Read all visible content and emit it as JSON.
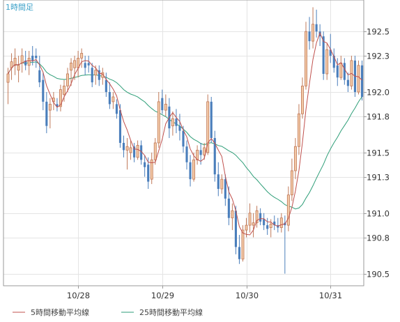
{
  "chart_data": {
    "type": "candlestick",
    "timeframe_label": "1時間足",
    "ylim": [
      190.4,
      192.76
    ],
    "yticks": [
      {
        "value": 192.5,
        "label": "192.5"
      },
      {
        "value": 192.3,
        "label": "192.3"
      },
      {
        "value": 192.0,
        "label": "192.0"
      },
      {
        "value": 191.8,
        "label": "191.8"
      },
      {
        "value": 191.5,
        "label": "191.5"
      },
      {
        "value": 191.3,
        "label": "191.3"
      },
      {
        "value": 191.0,
        "label": "191.0"
      },
      {
        "value": 190.8,
        "label": "190.8"
      },
      {
        "value": 190.5,
        "label": "190.5"
      }
    ],
    "xticks": [
      {
        "index": 20,
        "label": "10/28"
      },
      {
        "index": 44,
        "label": "10/29"
      },
      {
        "index": 68,
        "label": "10/30"
      },
      {
        "index": 92,
        "label": "10/31"
      }
    ],
    "candle_count": 102,
    "ohlc": [
      [
        192.08,
        192.2,
        191.9,
        192.15
      ],
      [
        192.2,
        192.32,
        192.1,
        192.25
      ],
      [
        192.22,
        192.36,
        192.14,
        192.28
      ],
      [
        192.18,
        192.3,
        192.08,
        192.22
      ],
      [
        192.24,
        192.36,
        192.16,
        192.3
      ],
      [
        192.26,
        192.34,
        192.18,
        192.22
      ],
      [
        192.22,
        192.34,
        192.14,
        192.28
      ],
      [
        192.3,
        192.38,
        192.22,
        192.26
      ],
      [
        192.3,
        192.36,
        192.2,
        192.28
      ],
      [
        192.18,
        192.3,
        192.04,
        192.08
      ],
      [
        192.1,
        192.16,
        191.85,
        191.92
      ],
      [
        191.92,
        192.0,
        191.66,
        191.72
      ],
      [
        191.85,
        191.95,
        191.7,
        191.9
      ],
      [
        191.92,
        192.0,
        191.85,
        191.95
      ],
      [
        191.9,
        191.95,
        191.84,
        191.88
      ],
      [
        191.88,
        192.06,
        191.84,
        192.02
      ],
      [
        191.98,
        192.1,
        191.92,
        192.05
      ],
      [
        192.05,
        192.2,
        192.0,
        192.15
      ],
      [
        192.18,
        192.28,
        192.05,
        192.24
      ],
      [
        192.2,
        192.3,
        192.1,
        192.26
      ],
      [
        192.2,
        192.34,
        192.12,
        192.28
      ],
      [
        192.28,
        192.36,
        192.2,
        192.32
      ],
      [
        192.24,
        192.3,
        192.14,
        192.2
      ],
      [
        192.24,
        192.3,
        192.16,
        192.22
      ],
      [
        192.2,
        192.24,
        192.04,
        192.08
      ],
      [
        192.14,
        192.22,
        192.06,
        192.18
      ],
      [
        192.18,
        192.22,
        192.05,
        192.1
      ],
      [
        192.12,
        192.2,
        192.06,
        192.16
      ],
      [
        192.1,
        192.16,
        191.96,
        192.0
      ],
      [
        192.0,
        192.08,
        191.86,
        191.9
      ],
      [
        191.92,
        192.0,
        191.86,
        191.96
      ],
      [
        191.9,
        191.94,
        191.78,
        191.82
      ],
      [
        191.85,
        191.9,
        191.54,
        191.58
      ],
      [
        191.58,
        191.64,
        191.46,
        191.52
      ],
      [
        191.52,
        191.62,
        191.36,
        191.55
      ],
      [
        191.5,
        191.6,
        191.44,
        191.54
      ],
      [
        191.55,
        191.58,
        191.42,
        191.46
      ],
      [
        191.46,
        191.6,
        191.44,
        191.56
      ],
      [
        191.56,
        191.6,
        191.4,
        191.44
      ],
      [
        191.42,
        191.48,
        191.3,
        191.38
      ],
      [
        191.4,
        191.46,
        191.2,
        191.26
      ],
      [
        191.28,
        191.5,
        191.24,
        191.44
      ],
      [
        191.44,
        191.62,
        191.4,
        191.58
      ],
      [
        191.58,
        192.0,
        191.54,
        191.92
      ],
      [
        191.95,
        192.02,
        191.82,
        191.85
      ],
      [
        191.85,
        191.98,
        191.8,
        191.9
      ],
      [
        191.88,
        191.95,
        191.62,
        191.7
      ],
      [
        191.72,
        191.84,
        191.64,
        191.78
      ],
      [
        191.78,
        191.86,
        191.66,
        191.72
      ],
      [
        191.72,
        191.82,
        191.6,
        191.68
      ],
      [
        191.68,
        191.72,
        191.5,
        191.55
      ],
      [
        191.55,
        191.6,
        191.36,
        191.42
      ],
      [
        191.42,
        191.48,
        191.22,
        191.28
      ],
      [
        191.28,
        191.5,
        191.26,
        191.44
      ],
      [
        191.44,
        191.56,
        191.4,
        191.52
      ],
      [
        191.52,
        191.58,
        191.4,
        191.48
      ],
      [
        191.48,
        191.58,
        191.44,
        191.54
      ],
      [
        191.5,
        191.98,
        191.48,
        191.92
      ],
      [
        191.92,
        191.96,
        191.58,
        191.62
      ],
      [
        191.62,
        191.68,
        191.26,
        191.32
      ],
      [
        191.32,
        191.42,
        191.14,
        191.2
      ],
      [
        191.2,
        191.32,
        191.16,
        191.28
      ],
      [
        191.28,
        191.32,
        191.06,
        191.12
      ],
      [
        191.12,
        191.22,
        190.9,
        190.96
      ],
      [
        190.96,
        191.08,
        190.86,
        191.02
      ],
      [
        191.02,
        191.06,
        190.66,
        190.72
      ],
      [
        190.72,
        190.82,
        190.58,
        190.62
      ],
      [
        190.62,
        190.9,
        190.6,
        190.86
      ],
      [
        190.86,
        190.96,
        190.8,
        190.9
      ],
      [
        190.9,
        191.08,
        190.84,
        191.0
      ],
      [
        190.9,
        191.0,
        190.8,
        190.92
      ],
      [
        190.92,
        191.06,
        190.88,
        191.02
      ],
      [
        191.0,
        191.04,
        190.9,
        190.93
      ],
      [
        190.95,
        191.0,
        190.86,
        190.9
      ],
      [
        190.9,
        190.96,
        190.82,
        190.87
      ],
      [
        190.88,
        190.95,
        190.8,
        190.91
      ],
      [
        190.93,
        190.98,
        190.86,
        190.9
      ],
      [
        190.9,
        190.96,
        190.84,
        190.88
      ],
      [
        190.88,
        191.0,
        190.84,
        190.96
      ],
      [
        190.92,
        190.98,
        190.5,
        190.9
      ],
      [
        190.9,
        191.22,
        190.85,
        191.15
      ],
      [
        191.15,
        191.45,
        191.1,
        191.35
      ],
      [
        191.35,
        191.62,
        191.28,
        191.55
      ],
      [
        191.55,
        191.9,
        191.48,
        191.82
      ],
      [
        191.82,
        192.12,
        191.78,
        192.05
      ],
      [
        192.05,
        192.58,
        192.02,
        192.5
      ],
      [
        192.5,
        192.62,
        192.35,
        192.42
      ],
      [
        192.42,
        192.7,
        192.36,
        192.56
      ],
      [
        192.56,
        192.68,
        192.45,
        192.5
      ],
      [
        192.5,
        192.56,
        192.38,
        192.46
      ],
      [
        192.46,
        192.5,
        192.1,
        192.15
      ],
      [
        192.15,
        192.4,
        192.1,
        192.35
      ],
      [
        192.35,
        192.48,
        192.24,
        192.3
      ],
      [
        192.3,
        192.36,
        192.16,
        192.2
      ],
      [
        192.22,
        192.28,
        192.05,
        192.12
      ],
      [
        192.12,
        192.3,
        192.1,
        192.24
      ],
      [
        192.24,
        192.28,
        192.06,
        192.1
      ],
      [
        192.1,
        192.16,
        192.0,
        192.05
      ],
      [
        192.05,
        192.3,
        192.02,
        192.26
      ],
      [
        192.26,
        192.3,
        191.96,
        192.0
      ],
      [
        192.0,
        192.26,
        191.98,
        192.22
      ],
      [
        192.22,
        192.26,
        191.93,
        191.96
      ]
    ],
    "series": [
      {
        "name": "5時間移動平均線",
        "color": "#c0504d",
        "window": 5
      },
      {
        "name": "25時間移動平均線",
        "color": "#2e9e78",
        "window": 25
      }
    ],
    "up_color": "#f2c9a6",
    "up_border": "#c07858",
    "down_color": "#4a7ebb",
    "grid": true,
    "legend_position": "bottom-left"
  }
}
